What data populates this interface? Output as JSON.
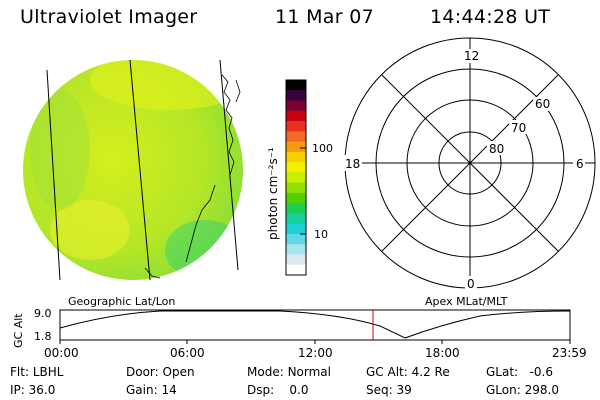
{
  "header": {
    "instrument": "Ultraviolet Imager",
    "date": "11 Mar 07",
    "time": "14:44:28 UT"
  },
  "colorbar": {
    "label": "photon cm⁻²s⁻¹",
    "tick_100": "100",
    "tick_10": "10",
    "colors": [
      "#000000",
      "#3a0040",
      "#7a0030",
      "#c80010",
      "#e83020",
      "#f06a28",
      "#f89a10",
      "#f7d000",
      "#f3f000",
      "#c8ee00",
      "#90e000",
      "#52d000",
      "#1ccf50",
      "#18cfa0",
      "#20d0d8",
      "#60d8e8",
      "#a8e4ee",
      "#dde9ec",
      "#ffffff"
    ]
  },
  "polar_grid": {
    "mlt_12": "12",
    "mlt_18": "18",
    "mlt_6": "6",
    "mlt_0": "0",
    "lat_60": "60",
    "lat_70": "70",
    "lat_80": "80"
  },
  "altitude_plot": {
    "ylabel": "GC Alt",
    "ymax_label": "9.0",
    "ymin_label": "1.8",
    "left_caption": "Geographic Lat/Lon",
    "right_caption": "Apex MLat/MLT",
    "x_ticks": [
      "00:00",
      "06:00",
      "12:00",
      "18:00",
      "23:59"
    ],
    "current_time_marker": "14:44",
    "marker_color": "#cc0000"
  },
  "status": {
    "flt_label": "Flt:",
    "flt_value": "LBHL",
    "ip_label": "IP:",
    "ip_value": "36.0",
    "door_label": "Door:",
    "door_value": "Open",
    "gain_label": "Gain:",
    "gain_value": "14",
    "mode_label": "Mode:",
    "mode_value": "Normal",
    "dsp_label": "Dsp:",
    "dsp_value": "0.0",
    "gcalt_label": "GC Alt:",
    "gcalt_value": "4.2 Re",
    "seq_label": "Seq:",
    "seq_value": "39",
    "glat_label": "GLat:",
    "glat_value": "-0.6",
    "glon_label": "GLon:",
    "glon_value": "298.0"
  }
}
